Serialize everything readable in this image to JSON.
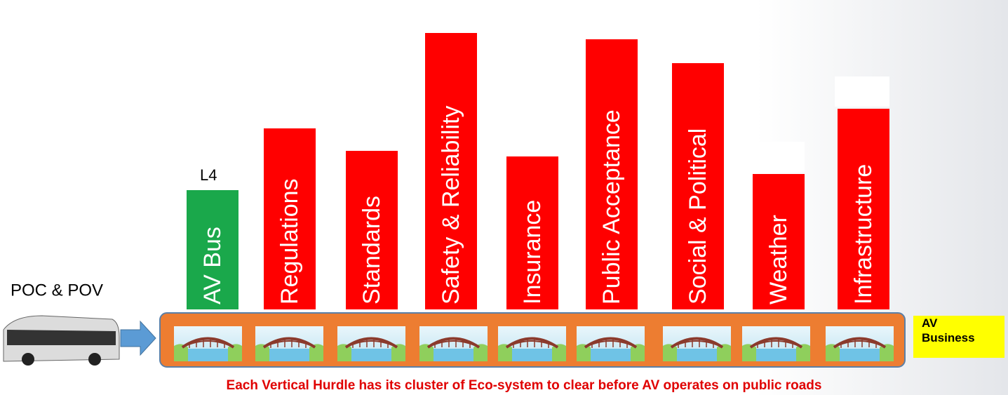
{
  "vehicle": {
    "label": "POC & POV"
  },
  "level": "L4",
  "pillars": [
    {
      "label": "AV Bus"
    },
    {
      "label": "Regulations"
    },
    {
      "label": "Standards"
    },
    {
      "label": "Safety & Reliability"
    },
    {
      "label": "Insurance"
    },
    {
      "label": "Public Acceptance"
    },
    {
      "label": "Social & Political"
    },
    {
      "label": "Weather"
    },
    {
      "label": "Infrastructure"
    }
  ],
  "goal": {
    "label": "AV\nBusiness"
  },
  "caption": "Each Vertical Hurdle has its cluster of Eco-system to clear before AV operates on public roads"
}
